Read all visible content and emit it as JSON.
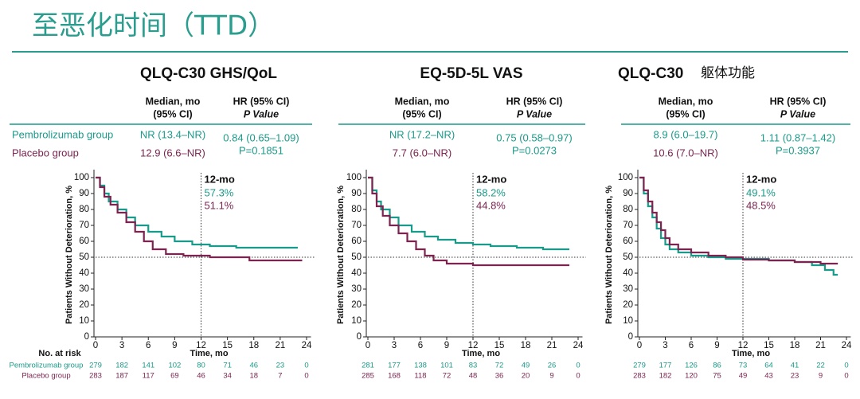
{
  "header": {
    "title": "至恶化时间（TTD）"
  },
  "chart_data": [
    {
      "type": "line",
      "step": true,
      "title": "QLQ-C30 GHS/QoL",
      "columns": [
        [
          "Median, mo",
          "(95% CI)"
        ],
        [
          "HR (95% CI)",
          "P Value"
        ]
      ],
      "rows": [
        {
          "median": "NR (13.4–NR)",
          "hr": "0.84 (0.65–1.09)"
        },
        {
          "median": "12.9 (6.6–NR)",
          "p": "P=0.1851"
        }
      ],
      "xlabel": "Time, mo",
      "ylabel": "Patients Without Deterioration, %",
      "xlim": [
        0,
        24.5
      ],
      "ylim": [
        0,
        103
      ],
      "xticks": [
        0,
        3,
        6,
        9,
        12,
        15,
        18,
        21,
        24
      ],
      "yticks": [
        0,
        10,
        20,
        30,
        40,
        50,
        60,
        70,
        80,
        90,
        100
      ],
      "ref_x": 12,
      "ref_y": 50,
      "annotation": {
        "title": "12-mo",
        "labels": [
          "57.3%",
          "51.1%"
        ]
      },
      "series": [
        {
          "name": "Pembrolizumab group",
          "color": "#1a9a8a",
          "x": [
            0,
            0.5,
            1,
            1.5,
            2.5,
            3.5,
            4.5,
            6,
            7.5,
            9,
            11,
            13,
            16,
            23
          ],
          "values": [
            100,
            95,
            90,
            85,
            80,
            75,
            70,
            66,
            63,
            60,
            58,
            57,
            56,
            56
          ]
        },
        {
          "name": "Placebo group",
          "color": "#7b2450",
          "x": [
            0,
            0.5,
            1,
            1.7,
            2.5,
            3.5,
            4.5,
            5.5,
            6.5,
            8,
            10,
            13,
            17.5,
            23.5
          ],
          "values": [
            100,
            94,
            88,
            83,
            78,
            72,
            66,
            60,
            55,
            52,
            51,
            50,
            48,
            48
          ]
        }
      ],
      "risk_table": {
        "title": "No. at risk",
        "labels": [
          "Pembrolizumab group",
          "Placebo group"
        ]
      },
      "at_risk": [
        [
          279,
          182,
          141,
          102,
          80,
          71,
          46,
          23,
          0
        ],
        [
          283,
          187,
          117,
          69,
          46,
          34,
          18,
          7,
          0
        ]
      ]
    },
    {
      "type": "line",
      "step": true,
      "title": "EQ-5D-5L VAS",
      "columns": [
        [
          "Median, mo",
          "(95% CI)"
        ],
        [
          "HR (95% CI)",
          "P Value"
        ]
      ],
      "rows": [
        {
          "median": "NR (17.2–NR)",
          "hr": "0.75 (0.58–0.97)"
        },
        {
          "median": "7.7 (6.0–NR)",
          "p": "P=0.0273"
        }
      ],
      "xlabel": "Time, mo",
      "ylabel": "Patients Without Deterioration, %",
      "xlim": [
        0,
        24.5
      ],
      "ylim": [
        0,
        103
      ],
      "xticks": [
        0,
        3,
        6,
        9,
        12,
        15,
        18,
        21,
        24
      ],
      "yticks": [
        0,
        10,
        20,
        30,
        40,
        50,
        60,
        70,
        80,
        90,
        100
      ],
      "ref_x": 12,
      "ref_y": 50,
      "annotation": {
        "title": "12-mo",
        "labels": [
          "58.2%",
          "44.8%"
        ]
      },
      "series": [
        {
          "color": "#1a9a8a",
          "x": [
            0,
            0.5,
            1,
            1.5,
            2.5,
            3.5,
            5,
            6.5,
            8,
            10,
            12,
            14,
            17,
            20,
            23
          ],
          "values": [
            100,
            92,
            85,
            80,
            75,
            70,
            66,
            63,
            61,
            59,
            58,
            57,
            56,
            55,
            55
          ]
        },
        {
          "color": "#7b2450",
          "x": [
            0,
            0.5,
            1,
            1.7,
            2.5,
            3.5,
            4.5,
            5.5,
            6.5,
            7.5,
            9,
            12,
            23
          ],
          "values": [
            100,
            90,
            82,
            76,
            70,
            65,
            60,
            55,
            51,
            48,
            46,
            45,
            45
          ]
        }
      ],
      "at_risk": [
        [
          281,
          177,
          138,
          101,
          83,
          72,
          49,
          26,
          0
        ],
        [
          285,
          168,
          118,
          72,
          48,
          36,
          20,
          9,
          0
        ]
      ]
    },
    {
      "type": "line",
      "step": true,
      "title": "QLQ-C30",
      "title_note": "躯体功能",
      "columns": [
        [
          "Median, mo",
          "(95% CI)"
        ],
        [
          "HR (95% CI)",
          "P Value"
        ]
      ],
      "rows": [
        {
          "median": "8.9 (6.0–19.7)",
          "hr": "1.11 (0.87–1.42)"
        },
        {
          "median": "10.6 (7.0–NR)",
          "p": "P=0.3937"
        }
      ],
      "xlabel": "Time, mo",
      "ylabel": "Patients Without Deterioration, %",
      "xlim": [
        0,
        24.5
      ],
      "ylim": [
        0,
        103
      ],
      "xticks": [
        0,
        3,
        6,
        9,
        12,
        15,
        18,
        21,
        24
      ],
      "yticks": [
        0,
        10,
        20,
        30,
        40,
        50,
        60,
        70,
        80,
        90,
        100
      ],
      "ref_x": 12,
      "ref_y": 50,
      "annotation": {
        "title": "12-mo",
        "labels": [
          "49.1%",
          "48.5%"
        ]
      },
      "series": [
        {
          "color": "#1a9a8a",
          "x": [
            0,
            0.5,
            1,
            1.5,
            2,
            2.5,
            3,
            3.5,
            4.5,
            6,
            8,
            10,
            15,
            18,
            20,
            21.5,
            22.5,
            23
          ],
          "values": [
            100,
            90,
            82,
            75,
            68,
            62,
            58,
            55,
            53,
            51,
            50,
            49,
            48,
            47,
            45,
            42,
            39,
            39
          ]
        },
        {
          "color": "#7b2450",
          "x": [
            0,
            0.5,
            1,
            1.5,
            2,
            2.5,
            3,
            3.5,
            4.5,
            6,
            8,
            10,
            12,
            15,
            18,
            21,
            23
          ],
          "values": [
            100,
            92,
            85,
            78,
            72,
            67,
            62,
            58,
            55,
            53,
            51,
            50,
            48.5,
            48,
            47,
            46,
            46
          ]
        }
      ],
      "at_risk": [
        [
          279,
          177,
          126,
          86,
          73,
          64,
          41,
          22,
          0
        ],
        [
          283,
          182,
          120,
          75,
          49,
          43,
          23,
          9,
          0
        ]
      ]
    }
  ]
}
